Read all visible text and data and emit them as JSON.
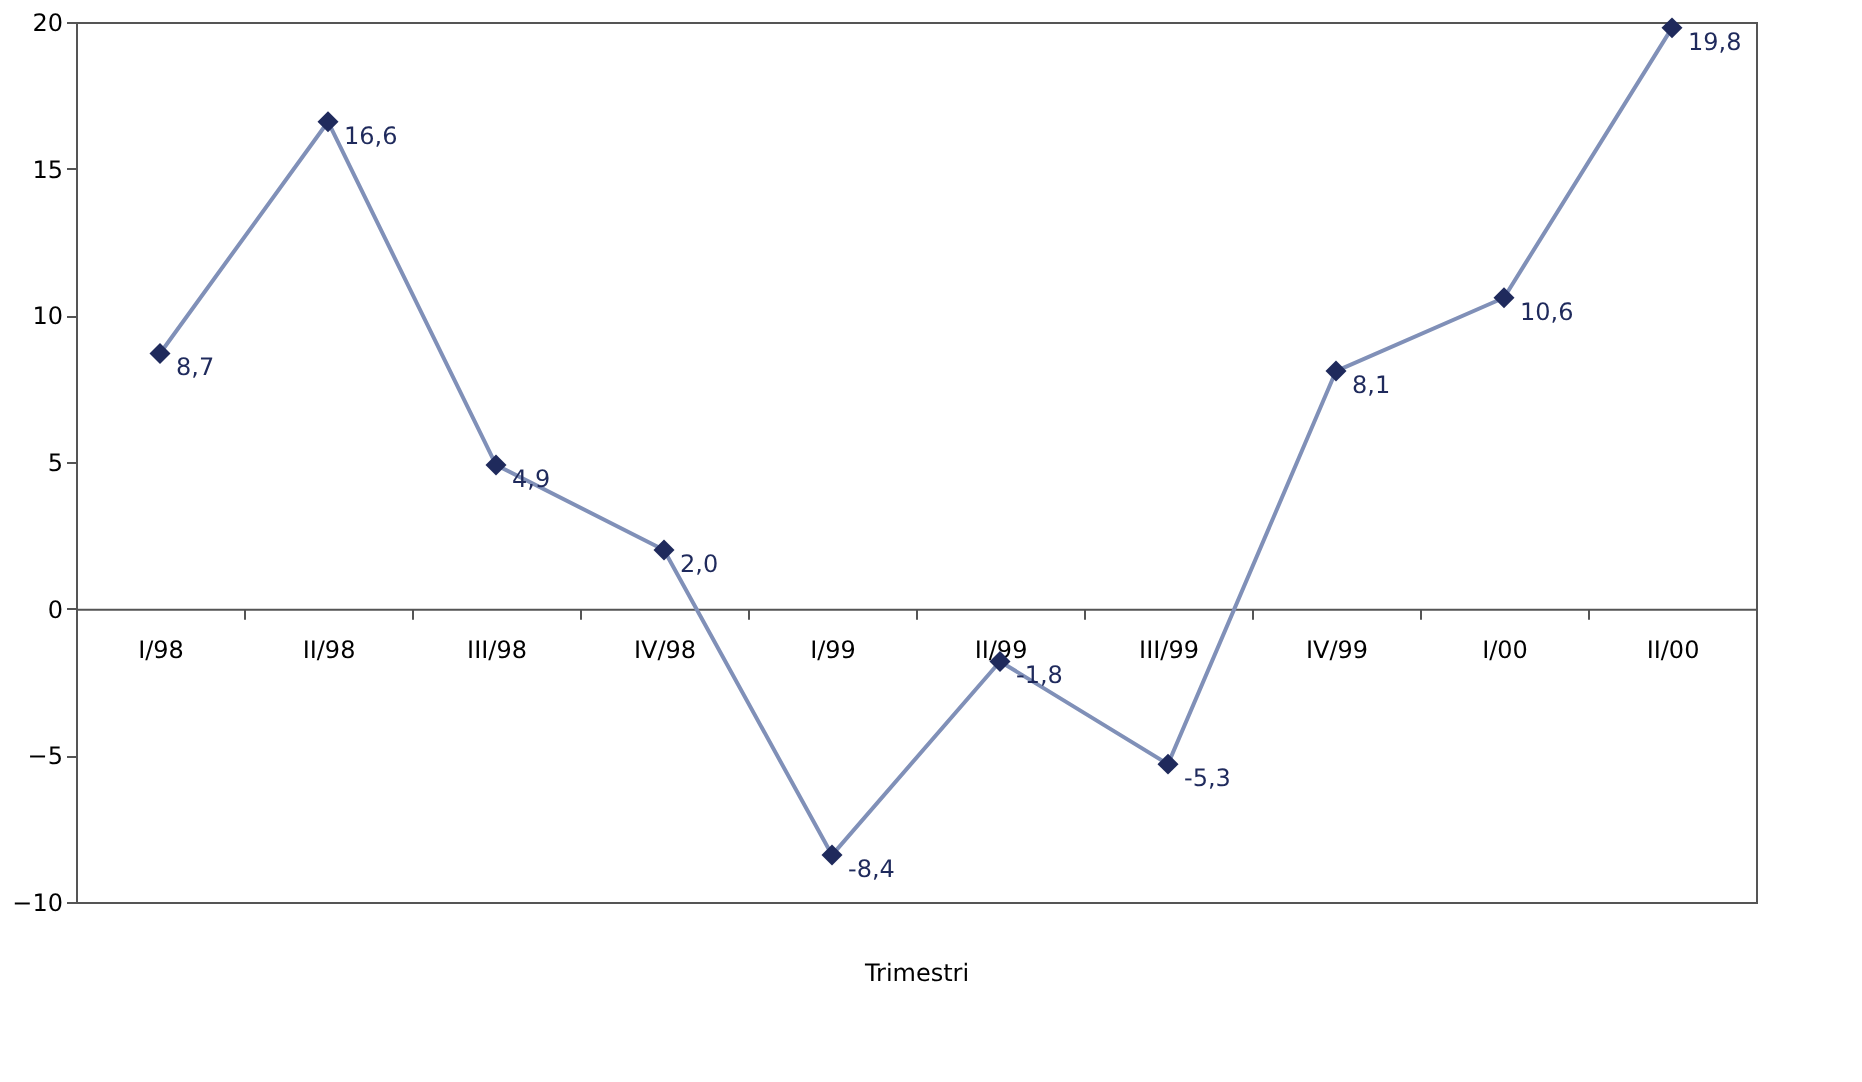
{
  "chart_data": {
    "type": "line",
    "xlabel": "Trimestri",
    "categories": [
      "I/98",
      "II/98",
      "III/98",
      "IV/98",
      "I/99",
      "II/99",
      "III/99",
      "IV/99",
      "I/00",
      "II/00"
    ],
    "series": [
      {
        "color": "#1f2a5c",
        "values": [
          8.7,
          16.6,
          4.9,
          2.0,
          -8.4,
          -1.8,
          -5.3,
          8.1,
          10.6,
          19.8
        ],
        "value_labels": [
          "8,7",
          "16,6",
          "4,9",
          "2,0",
          "-8,4",
          "-1,8",
          "-5,3",
          "8,1",
          "10,6",
          "19,8"
        ]
      }
    ],
    "ylim": [
      -10,
      20
    ],
    "yticks": [
      -10,
      -5,
      0,
      5,
      10,
      15,
      20
    ],
    "marker": "diamond",
    "line_style": "solid",
    "grid": false
  }
}
